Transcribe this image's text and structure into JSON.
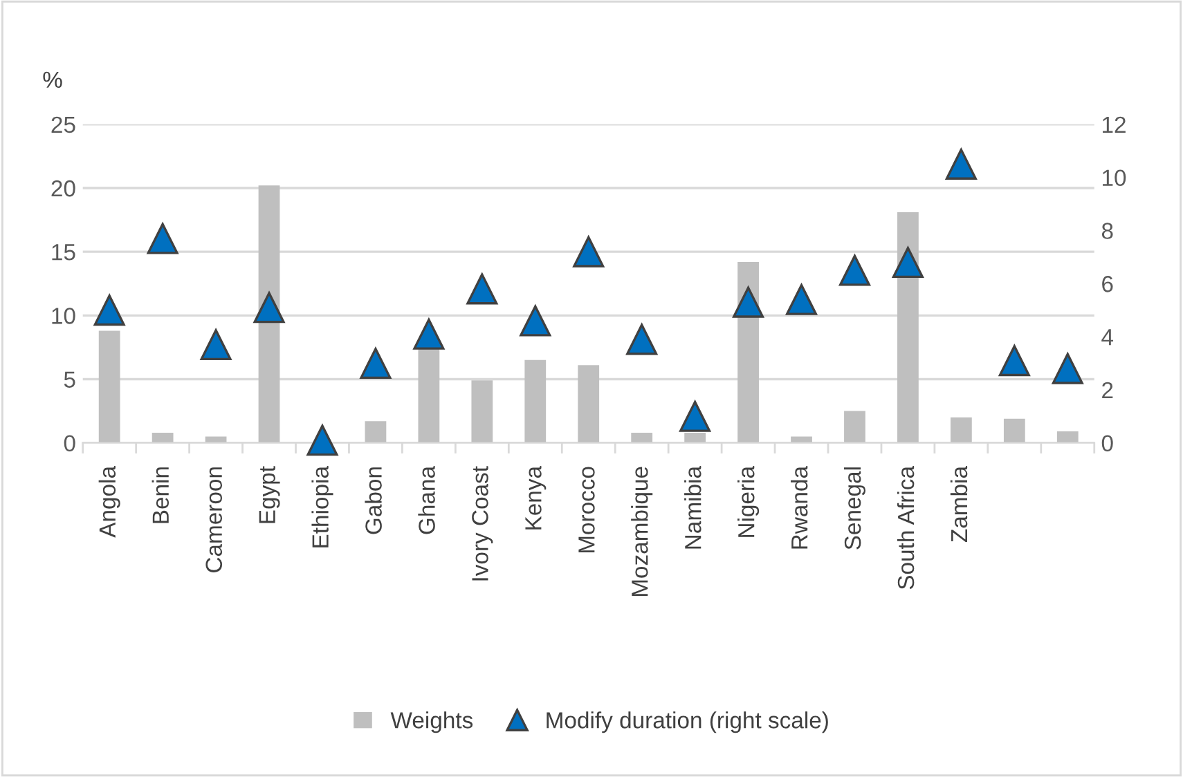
{
  "chart_data": {
    "type": "bar",
    "ylabel": "%",
    "categories": [
      "Angola",
      "Benin",
      "Cameroon",
      "Egypt",
      "Ethiopia",
      "Gabon",
      "Ghana",
      "Ivory Coast",
      "Kenya",
      "Morocco",
      "Mozambique",
      "Namibia",
      "Nigeria",
      "Rwanda",
      "Senegal",
      "South Africa",
      "Zambia",
      null,
      null
    ],
    "series": [
      {
        "name": "Weights",
        "color": "#bfbfbf",
        "values": [
          8.8,
          0.8,
          0.5,
          20.2,
          null,
          1.7,
          7.5,
          4.9,
          6.5,
          6.1,
          0.8,
          0.8,
          14.2,
          0.5,
          2.5,
          18.1,
          2.0,
          1.9,
          0.9
        ]
      },
      {
        "name": "Modify duration (right scale)",
        "type": "scatter",
        "axis": "y2",
        "marker": "triangle",
        "color": "#0070c0",
        "values": [
          5.0,
          7.7,
          3.7,
          5.1,
          0.1,
          3.0,
          4.1,
          5.8,
          4.6,
          7.2,
          3.9,
          1.0,
          5.3,
          5.4,
          6.5,
          6.8,
          10.5,
          3.1,
          2.8
        ]
      }
    ],
    "ylim": [
      0,
      25
    ],
    "yticks": [
      0,
      5,
      10,
      15,
      20,
      25
    ],
    "y2lim": [
      0,
      12
    ],
    "y2ticks": [
      0,
      2,
      4,
      6,
      8,
      10,
      12
    ],
    "grid": "y",
    "legend": "bottom"
  }
}
